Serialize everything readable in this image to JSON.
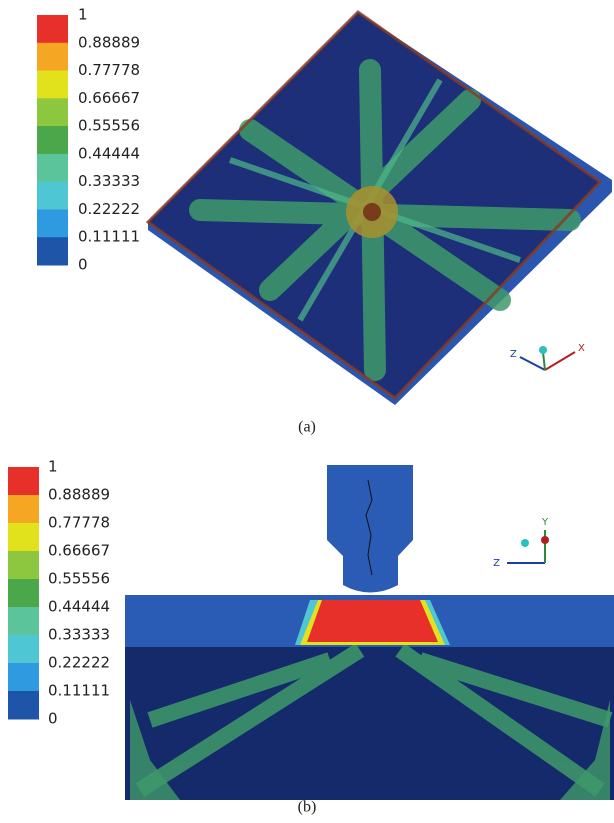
{
  "panels": [
    {
      "legend": {
        "labels": [
          "1",
          "0.88889",
          "0.77778",
          "0.66667",
          "0.55556",
          "0.44444",
          "0.33333",
          "0.22222",
          "0.11111",
          "0"
        ],
        "colors": [
          "#e8302a",
          "#f5a623",
          "#e2e21c",
          "#8dc63f",
          "#4aa74a",
          "#5cc49a",
          "#4fc6d4",
          "#2e9be0",
          "#1f55a8"
        ]
      },
      "triad": [
        "Z",
        "X"
      ],
      "caption": "(a)"
    },
    {
      "legend": {
        "labels": [
          "1",
          "0.88889",
          "0.77778",
          "0.66667",
          "0.55556",
          "0.44444",
          "0.33333",
          "0.22222",
          "0.11111",
          "0"
        ],
        "colors": [
          "#e8302a",
          "#f5a623",
          "#e2e21c",
          "#8dc63f",
          "#4aa74a",
          "#5cc49a",
          "#4fc6d4",
          "#2e9be0",
          "#1f55a8"
        ]
      },
      "triad": [
        "Y",
        "Z"
      ],
      "caption": "(b)"
    }
  ]
}
